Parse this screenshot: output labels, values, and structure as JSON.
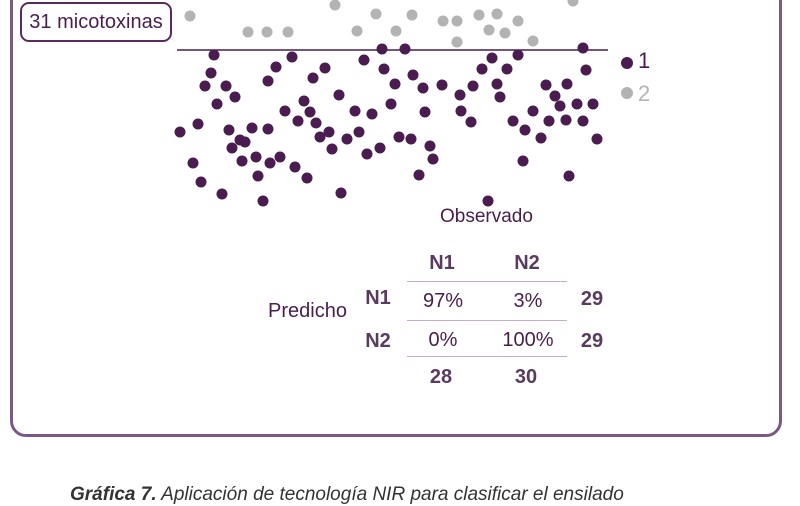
{
  "badge": {
    "label": "31 micotoxinas"
  },
  "legend": [
    {
      "label": "1",
      "color": "#4a1c4f"
    },
    {
      "label": "2",
      "color": "#b3b3b3"
    }
  ],
  "chart_data": {
    "type": "scatter",
    "threshold_line": true,
    "series": [
      {
        "name": "1",
        "color": "#4a1c4f",
        "points": [
          [
            180,
            132
          ],
          [
            193,
            163
          ],
          [
            201,
            182
          ],
          [
            198,
            124
          ],
          [
            205,
            86
          ],
          [
            211,
            73
          ],
          [
            214,
            55
          ],
          [
            217,
            104
          ],
          [
            222,
            194
          ],
          [
            226,
            86
          ],
          [
            229,
            130
          ],
          [
            232,
            148
          ],
          [
            235,
            97
          ],
          [
            240,
            140
          ],
          [
            242,
            161
          ],
          [
            245,
            142
          ],
          [
            252,
            128
          ],
          [
            256,
            157
          ],
          [
            258,
            176
          ],
          [
            263,
            201
          ],
          [
            268,
            129
          ],
          [
            268,
            81
          ],
          [
            270,
            163
          ],
          [
            276,
            67
          ],
          [
            280,
            157
          ],
          [
            285,
            111
          ],
          [
            292,
            57
          ],
          [
            295,
            167
          ],
          [
            298,
            121
          ],
          [
            304,
            101
          ],
          [
            307,
            178
          ],
          [
            310,
            112
          ],
          [
            313,
            78
          ],
          [
            316,
            123
          ],
          [
            320,
            137
          ],
          [
            325,
            68
          ],
          [
            329,
            132
          ],
          [
            332,
            149
          ],
          [
            339,
            95
          ],
          [
            341,
            193
          ],
          [
            347,
            139
          ],
          [
            355,
            111
          ],
          [
            359,
            132
          ],
          [
            364,
            60
          ],
          [
            367,
            154
          ],
          [
            372,
            114
          ],
          [
            380,
            148
          ],
          [
            382,
            49
          ],
          [
            384,
            69
          ],
          [
            391,
            104
          ],
          [
            395,
            84
          ],
          [
            399,
            137
          ],
          [
            405,
            49
          ],
          [
            411,
            139
          ],
          [
            413,
            75
          ],
          [
            419,
            175
          ],
          [
            423,
            88
          ],
          [
            425,
            112
          ],
          [
            430,
            146
          ],
          [
            433,
            159
          ],
          [
            442,
            85
          ],
          [
            460,
            95
          ],
          [
            461,
            111
          ],
          [
            471,
            122
          ],
          [
            473,
            86
          ],
          [
            482,
            69
          ],
          [
            488,
            201
          ],
          [
            492,
            58
          ],
          [
            497,
            84
          ],
          [
            500,
            97
          ],
          [
            507,
            69
          ],
          [
            513,
            121
          ],
          [
            518,
            55
          ],
          [
            523,
            161
          ],
          [
            525,
            130
          ],
          [
            533,
            111
          ],
          [
            541,
            138
          ],
          [
            546,
            85
          ],
          [
            549,
            121
          ],
          [
            555,
            96
          ],
          [
            560,
            106
          ],
          [
            566,
            120
          ],
          [
            567,
            84
          ],
          [
            569,
            176
          ],
          [
            577,
            104
          ],
          [
            583,
            121
          ],
          [
            583,
            48
          ],
          [
            586,
            70
          ],
          [
            593,
            104
          ],
          [
            597,
            139
          ]
        ]
      },
      {
        "name": "2",
        "color": "#b3b3b3",
        "points": [
          [
            190,
            16
          ],
          [
            248,
            32
          ],
          [
            267,
            32
          ],
          [
            288,
            32
          ],
          [
            335,
            5
          ],
          [
            357,
            31
          ],
          [
            376,
            14
          ],
          [
            396,
            31
          ],
          [
            412,
            15
          ],
          [
            443,
            21
          ],
          [
            457,
            21
          ],
          [
            457,
            42
          ],
          [
            479,
            15
          ],
          [
            489,
            30
          ],
          [
            497,
            14
          ],
          [
            505,
            33
          ],
          [
            518,
            21
          ],
          [
            533,
            41
          ],
          [
            573,
            1
          ]
        ]
      }
    ],
    "confusion_matrix": {
      "title": "Observado",
      "row_title": "Predicho",
      "col_headers": [
        "N1",
        "N2"
      ],
      "row_headers": [
        "N1",
        "N2"
      ],
      "cells": [
        [
          "97%",
          "3%"
        ],
        [
          "0%",
          "100%"
        ]
      ],
      "row_totals": [
        "29",
        "29"
      ],
      "col_totals": [
        "28",
        "30"
      ]
    }
  },
  "caption": {
    "bold": "Gráfica 7.",
    "text": " Aplicación de tecnología NIR para clasificar el ensilado"
  }
}
